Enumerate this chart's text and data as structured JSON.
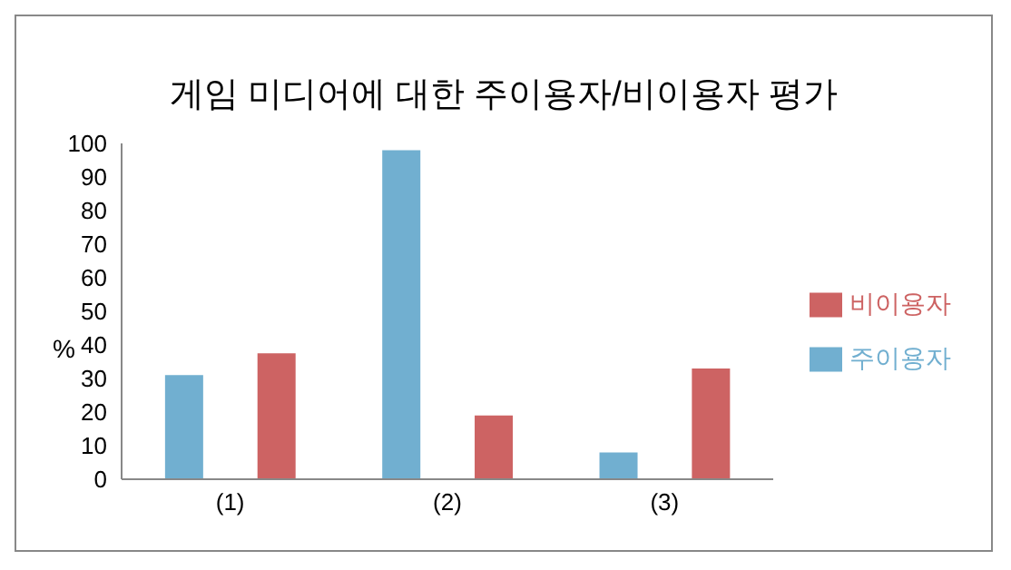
{
  "chart_data": {
    "type": "bar",
    "title": "게임 미디어에 대한 주이용자/비이용자 평가",
    "ylabel": "%",
    "categories": [
      "(1)",
      "(2)",
      "(3)"
    ],
    "series": [
      {
        "name": "주이용자",
        "color": "#71afd0",
        "values": [
          31,
          98,
          8
        ]
      },
      {
        "name": "비이용자",
        "color": "#cd6363",
        "values": [
          37.5,
          19,
          33
        ]
      }
    ],
    "ylim": [
      0,
      100
    ],
    "yticks": [
      0,
      10,
      20,
      30,
      40,
      50,
      60,
      70,
      80,
      90,
      100
    ],
    "grid": false,
    "legend": "right"
  }
}
